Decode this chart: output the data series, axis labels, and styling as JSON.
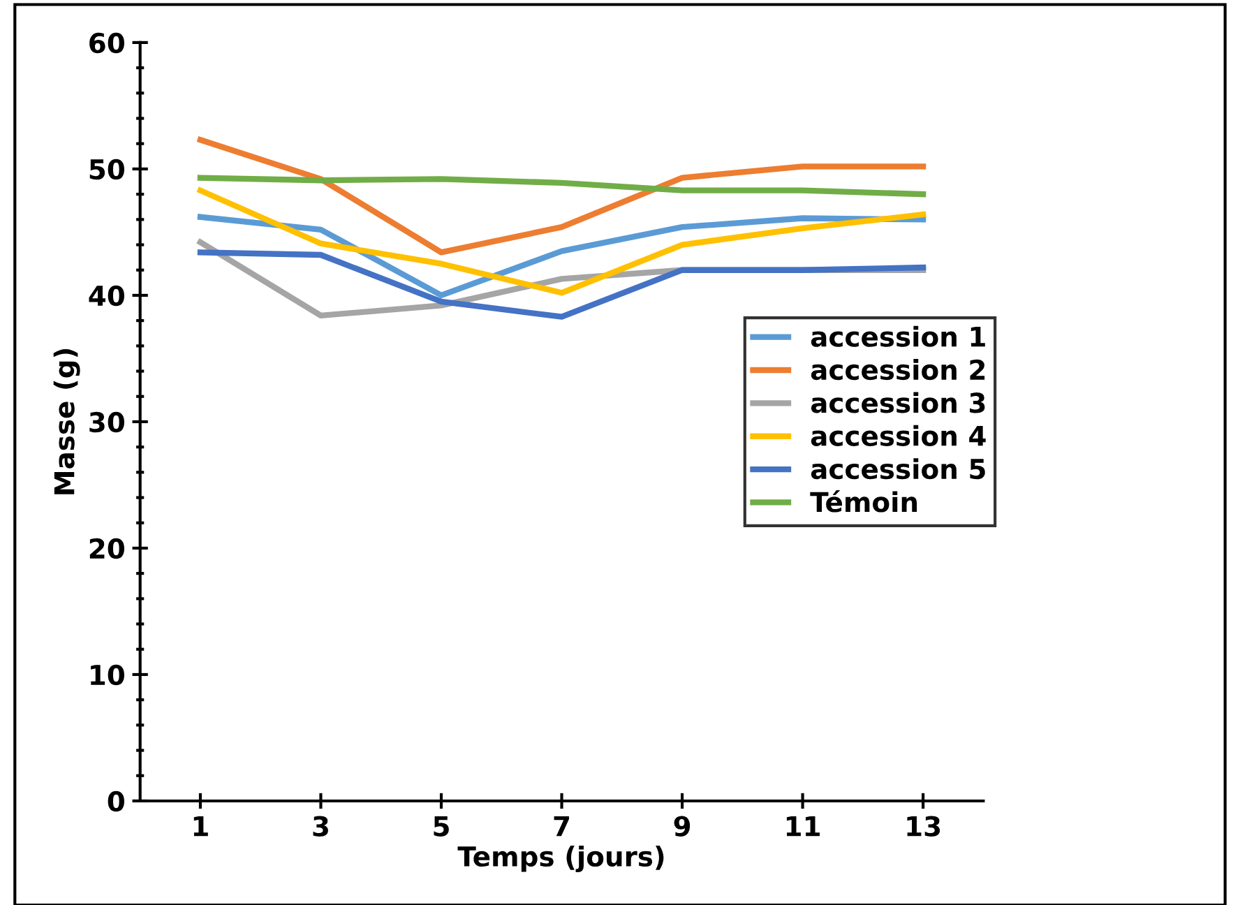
{
  "chart_data": {
    "type": "line",
    "xlabel": "Temps (jours)",
    "ylabel": "Masse (g)",
    "x": [
      1,
      3,
      5,
      7,
      9,
      11,
      13
    ],
    "xlim": [
      0,
      14
    ],
    "xticks": [
      1,
      3,
      5,
      7,
      9,
      11,
      13
    ],
    "ylim": [
      0,
      60
    ],
    "yticks": [
      0,
      10,
      20,
      30,
      40,
      50,
      60
    ],
    "grid": false,
    "legend": "right",
    "marker": "none",
    "line_style": "solid",
    "series": [
      {
        "name": "accession 1",
        "color": "#5b9bd5",
        "values": [
          46.2,
          45.2,
          40.0,
          43.5,
          45.4,
          46.1,
          46.0
        ]
      },
      {
        "name": "accession 2",
        "color": "#ed7d31",
        "values": [
          52.3,
          49.2,
          43.4,
          45.4,
          49.3,
          50.2,
          50.2
        ]
      },
      {
        "name": "accession 3",
        "color": "#a5a5a5",
        "values": [
          44.2,
          38.4,
          39.2,
          41.3,
          42.0,
          42.0,
          42.0
        ]
      },
      {
        "name": "accession 4",
        "color": "#ffc000",
        "values": [
          48.3,
          44.1,
          42.5,
          40.2,
          44.0,
          45.3,
          46.4
        ]
      },
      {
        "name": "accession 5",
        "color": "#4472c4",
        "values": [
          43.4,
          43.2,
          39.5,
          38.3,
          42.0,
          42.0,
          42.2
        ]
      },
      {
        "name": "Témoin",
        "color": "#70ad47",
        "values": [
          49.3,
          49.1,
          49.2,
          48.9,
          48.3,
          48.3,
          48.0
        ]
      }
    ]
  }
}
